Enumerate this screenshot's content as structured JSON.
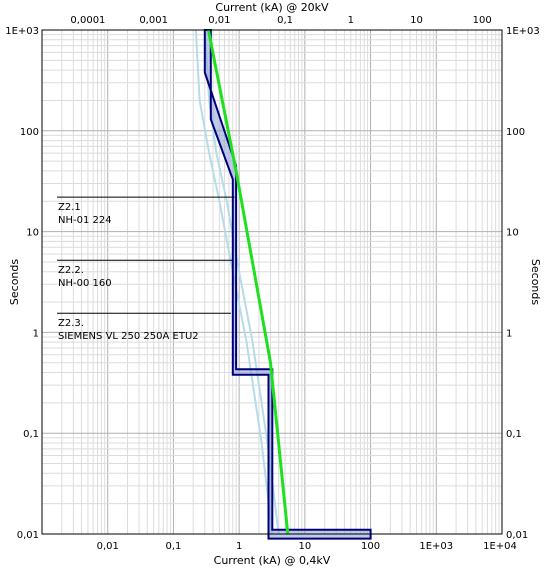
{
  "chart_data": {
    "type": "line",
    "x_axis_bottom": {
      "label": "Current (kA) @ 0,4kV",
      "scale": "log",
      "range": [
        0.001,
        10000
      ],
      "ticks": [
        {
          "value": 0.01,
          "label": "0,01"
        },
        {
          "value": 0.1,
          "label": "0,1"
        },
        {
          "value": 1,
          "label": "1"
        },
        {
          "value": 10,
          "label": "10"
        },
        {
          "value": 100,
          "label": "100"
        },
        {
          "value": 1000,
          "label": "1E+03"
        },
        {
          "value": 10000,
          "label": "1E+04"
        }
      ]
    },
    "x_axis_top": {
      "label": "Current (kA) @ 20kV",
      "scale": "log",
      "ticks": [
        {
          "value": 0.0001,
          "label": "0,0001"
        },
        {
          "value": 0.001,
          "label": "0,001"
        },
        {
          "value": 0.01,
          "label": "0,01"
        },
        {
          "value": 0.1,
          "label": "0,1"
        },
        {
          "value": 1,
          "label": "1"
        },
        {
          "value": 10,
          "label": "10"
        },
        {
          "value": 100,
          "label": "100"
        }
      ]
    },
    "y_axis": {
      "label": "Seconds",
      "scale": "log",
      "range": [
        0.01,
        1000
      ],
      "ticks": [
        {
          "value": 1000,
          "label": "1E+03"
        },
        {
          "value": 100,
          "label": "100"
        },
        {
          "value": 10,
          "label": "10"
        },
        {
          "value": 1,
          "label": "1"
        },
        {
          "value": 0.1,
          "label": "0,1"
        },
        {
          "value": 0.01,
          "label": "0,01"
        }
      ]
    },
    "grid": true,
    "annotations": [
      {
        "line1": "Z2.1",
        "line2": "NH-01 224",
        "y": 22,
        "x": 0.85
      },
      {
        "line1": "Z2.2.",
        "line2": "NH-00 160",
        "y": 5.2,
        "x": 0.8
      },
      {
        "line1": "Z2.3.",
        "line2": "SIEMENS VL 250 250A ETU2",
        "y": 1.55,
        "x": 0.75
      }
    ],
    "series": [
      {
        "color": "#b5dce8",
        "width": 2,
        "points": [
          [
            0.22,
            1000
          ],
          [
            0.25,
            200
          ],
          [
            0.35,
            60
          ],
          [
            0.5,
            20
          ],
          [
            0.8,
            4
          ],
          [
            1.3,
            0.8
          ],
          [
            2.2,
            0.08
          ],
          [
            3.2,
            0.01
          ]
        ]
      },
      {
        "color": "#b5dce8",
        "width": 2,
        "points": [
          [
            0.3,
            1000
          ],
          [
            0.35,
            200
          ],
          [
            0.45,
            60
          ],
          [
            0.65,
            20
          ],
          [
            1.0,
            4
          ],
          [
            1.6,
            0.8
          ],
          [
            2.7,
            0.08
          ],
          [
            4.0,
            0.01
          ]
        ]
      },
      {
        "color": "#1fe01f",
        "width": 3,
        "points": [
          [
            0.34,
            1000
          ],
          [
            0.9,
            40
          ],
          [
            3.0,
            0.5
          ],
          [
            5.5,
            0.01
          ]
        ]
      }
    ],
    "band": {
      "fill": "#8a9fd4",
      "stroke": "#00007a",
      "upper": [
        [
          0.3,
          1000
        ],
        [
          0.3,
          380
        ],
        [
          0.9,
          45
        ],
        [
          0.9,
          0.43
        ],
        [
          3.2,
          0.43
        ],
        [
          3.2,
          0.011
        ],
        [
          100,
          0.011
        ]
      ],
      "lower": [
        [
          100,
          0.009
        ],
        [
          2.8,
          0.009
        ],
        [
          2.8,
          0.38
        ],
        [
          0.8,
          0.38
        ],
        [
          0.8,
          33
        ],
        [
          0.37,
          130
        ],
        [
          0.37,
          1000
        ]
      ]
    }
  }
}
